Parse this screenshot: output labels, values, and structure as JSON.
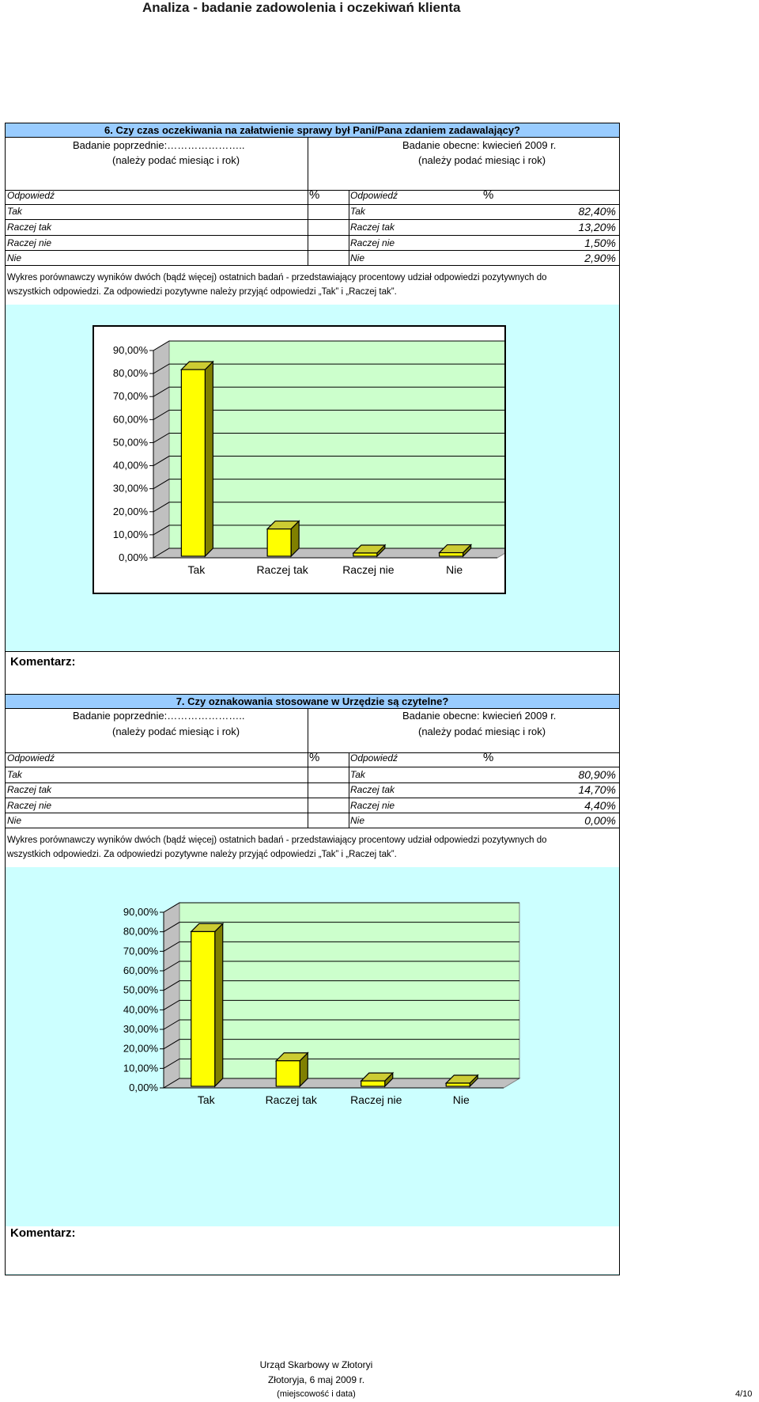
{
  "doc": {
    "title": "Analiza - badanie zadowolenia i oczekiwań klienta",
    "page_number": "4/10"
  },
  "sections": [
    {
      "question": "6. Czy czas oczekiwania na załatwienie sprawy był Pani/Pana zdaniem zadawalający?",
      "prev_label": "Badanie poprzednie:…………………..",
      "curr_label": "Badanie obecne:   kwiecień 2009 r.",
      "hint": "(należy podać miesiąc i rok)",
      "col_answer": "Odpowiedź",
      "col_pct": "%",
      "rows": [
        {
          "label": "Tak",
          "prev": "",
          "curr": "82,40%"
        },
        {
          "label": "Raczej tak",
          "prev": "",
          "curr": "13,20%"
        },
        {
          "label": "Raczej nie",
          "prev": "",
          "curr": "1,50%"
        },
        {
          "label": "Nie",
          "prev": "",
          "curr": "2,90%"
        }
      ],
      "description_1": "Wykres porównawczy wyników dwóch (bądź więcej) ostatnich badań - przedstawiający procentowy udział odpowiedzi pozytywnych do",
      "description_2": "wszystkich odpowiedzi. Za odpowiedzi pozytywne należy przyjąć odpowiedzi „Tak” i „Raczej tak”.",
      "comment_label": "Komentarz:"
    },
    {
      "question": "7. Czy oznakowania stosowane w Urzędzie są czytelne?",
      "prev_label": "Badanie poprzednie:…………………..",
      "curr_label": "Badanie obecne:   kwiecień 2009 r.",
      "hint": "(należy podać miesiąc i rok)",
      "col_answer": "Odpowiedź",
      "col_pct": "%",
      "rows": [
        {
          "label": "Tak",
          "prev": "",
          "curr": "80,90%"
        },
        {
          "label": "Raczej tak",
          "prev": "",
          "curr": "14,70%"
        },
        {
          "label": "Raczej nie",
          "prev": "",
          "curr": "4,40%"
        },
        {
          "label": "Nie",
          "prev": "",
          "curr": "0,00%"
        }
      ],
      "description_1": "Wykres porównawczy wyników dwóch (bądź więcej) ostatnich badań - przedstawiający procentowy udział odpowiedzi pozytywnych do",
      "description_2": "wszystkich odpowiedzi. Za odpowiedzi pozytywne należy przyjąć odpowiedzi „Tak” i „Raczej tak”.",
      "comment_label": "Komentarz:"
    }
  ],
  "chart_data": [
    {
      "type": "bar",
      "categories": [
        "Tak",
        "Raczej tak",
        "Raczej nie",
        "Nie"
      ],
      "values": [
        82.4,
        13.2,
        1.5,
        2.9
      ],
      "yticks": [
        "0,00%",
        "10,00%",
        "20,00%",
        "30,00%",
        "40,00%",
        "50,00%",
        "60,00%",
        "70,00%",
        "80,00%",
        "90,00%"
      ],
      "ylim": [
        0,
        90
      ],
      "colors": {
        "bar": "#ffff00",
        "bar_side": "#808000",
        "bar_top": "#cccc33",
        "plot": "#ccffcc"
      }
    },
    {
      "type": "bar",
      "categories": [
        "Tak",
        "Raczej tak",
        "Raczej nie",
        "Nie"
      ],
      "values": [
        80.9,
        14.7,
        4.4,
        0.0
      ],
      "yticks": [
        "0,00%",
        "10,00%",
        "20,00%",
        "30,00%",
        "40,00%",
        "50,00%",
        "60,00%",
        "70,00%",
        "80,00%",
        "90,00%"
      ],
      "ylim": [
        0,
        90
      ],
      "colors": {
        "bar": "#ffff00",
        "bar_side": "#808000",
        "bar_top": "#cccc33",
        "plot": "#ccffcc"
      }
    }
  ],
  "footer": {
    "office": "Urząd Skarbowy w Złotoryi",
    "place_date": "Złotoryja, 6 maj 2009 r.",
    "place_date_hint": "(miejscowość i data)"
  }
}
